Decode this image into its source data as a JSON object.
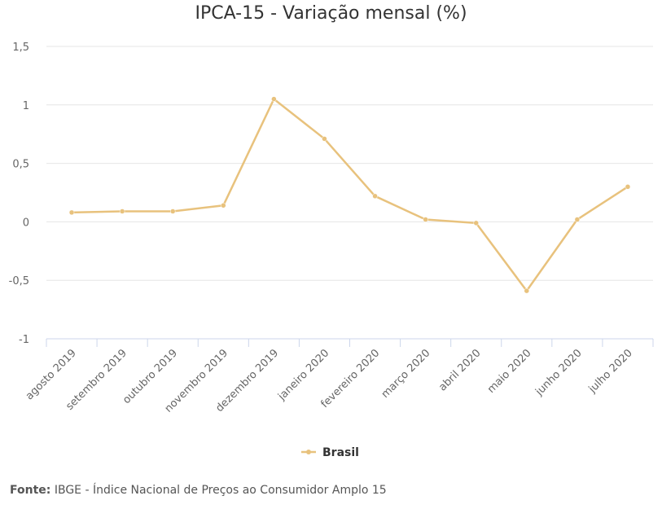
{
  "chart_data": {
    "type": "line",
    "title": "IPCA-15 - Variação mensal (%)",
    "categories": [
      "agosto 2019",
      "setembro 2019",
      "outubro 2019",
      "novembro 2019",
      "dezembro 2019",
      "janeiro 2020",
      "fevereiro 2020",
      "março 2020",
      "abril 2020",
      "maio 2020",
      "junho 2020",
      "julho 2020"
    ],
    "series": [
      {
        "name": "Brasil",
        "color": "#E8C27D",
        "values": [
          0.08,
          0.09,
          0.09,
          0.14,
          1.05,
          0.71,
          0.22,
          0.02,
          -0.01,
          -0.59,
          0.02,
          0.3
        ]
      }
    ],
    "y_ticks": [
      "1,5",
      "1",
      "0,5",
      "0",
      "-0,5",
      "-1"
    ],
    "y_tick_values": [
      1.5,
      1,
      0.5,
      0,
      -0.5,
      -1
    ],
    "ylim": [
      -1,
      1.5
    ],
    "grid": true,
    "legend": "bottom-center"
  },
  "source": {
    "label": "Fonte:",
    "text": "IBGE - Índice Nacional de Preços ao Consumidor Amplo 15"
  }
}
